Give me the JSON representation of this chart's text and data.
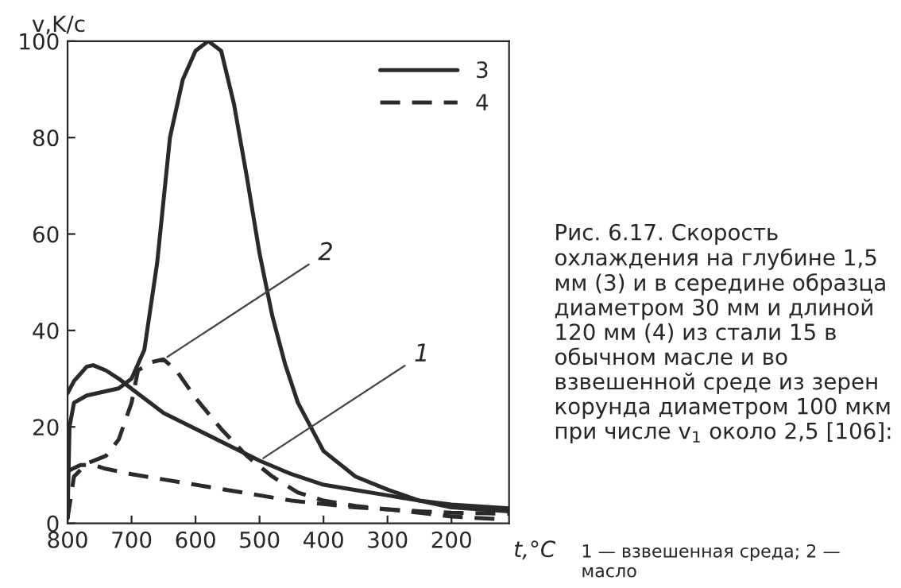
{
  "chart_data": {
    "type": "line",
    "ylabel": "v,K/c",
    "xlabel": "t,°C",
    "xlim": [
      800,
      110
    ],
    "xticks": [
      800,
      700,
      600,
      500,
      400,
      300,
      200
    ],
    "ylim": [
      0,
      100
    ],
    "yticks": [
      0,
      20,
      40,
      60,
      80,
      100
    ],
    "grid": false,
    "legend": "top right",
    "marker": "none",
    "series": [
      {
        "name": "3",
        "color": "#2a2a2a",
        "line_style": "solid",
        "x": [
          800,
          797,
          790,
          770,
          720,
          700,
          680,
          660,
          640,
          620,
          600,
          580,
          560,
          540,
          520,
          500,
          480,
          460,
          440,
          400,
          350,
          300,
          250,
          200,
          110
        ],
        "values": [
          1,
          20,
          25,
          26.5,
          28,
          30,
          36,
          54,
          80,
          92,
          98,
          100,
          98,
          87,
          72,
          56,
          43,
          33,
          25,
          15,
          9.7,
          7,
          4.7,
          3.3,
          2.5
        ]
      },
      {
        "color": "#2a2a2a",
        "line_style": "solid",
        "x": [
          800,
          790,
          770,
          760,
          740,
          720,
          700,
          650,
          600,
          550,
          500,
          450,
          400,
          350,
          300,
          250,
          200,
          110
        ],
        "values": [
          27,
          29.5,
          32.5,
          32.8,
          31.7,
          30,
          27.9,
          22.9,
          19.6,
          16.3,
          13,
          10.2,
          8,
          6.9,
          5.8,
          4.7,
          3.9,
          3.1
        ]
      },
      {
        "name": "4",
        "color": "#2a2a2a",
        "line_style": "dashed",
        "x": [
          800,
          790,
          770,
          740,
          720,
          700,
          690,
          670,
          650,
          630,
          600,
          560,
          520,
          480,
          440,
          400,
          350,
          300,
          250,
          200,
          130
        ],
        "values": [
          1,
          9.7,
          12.4,
          14,
          17.4,
          25,
          31.7,
          33.4,
          34,
          31.7,
          26,
          19.6,
          14,
          9.7,
          6.4,
          4.7,
          3.6,
          2.9,
          2.2,
          1.4,
          0.9
        ]
      },
      {
        "color": "#2a2a2a",
        "line_style": "dashed",
        "x": [
          800,
          780,
          760,
          740,
          700,
          650,
          600,
          550,
          500,
          450,
          400,
          350,
          300,
          250,
          200,
          110
        ],
        "values": [
          10.8,
          12.1,
          12.1,
          11.3,
          10.2,
          9.1,
          8,
          6.9,
          5.8,
          4.7,
          4,
          3.3,
          2.9,
          2.5,
          2.2,
          2
        ]
      }
    ],
    "annotations": [
      {
        "text": "2",
        "x": 650,
        "y": 34
      },
      {
        "text": "1",
        "x": 500,
        "y": 13
      },
      "Рис. 6.17. Скорость охлаждения на глубине 1,5 мм (3) и в середине образца диаметром 30 мм и длиной 120 мм (4) из стали 15 в обычном масле и во взвешенной среде из зерен корунда диаметром 100 мкм при числе v$_{1}$ около 2,5 [106]:",
      "1 — взвешенная среда; 2 — масло"
    ]
  }
}
